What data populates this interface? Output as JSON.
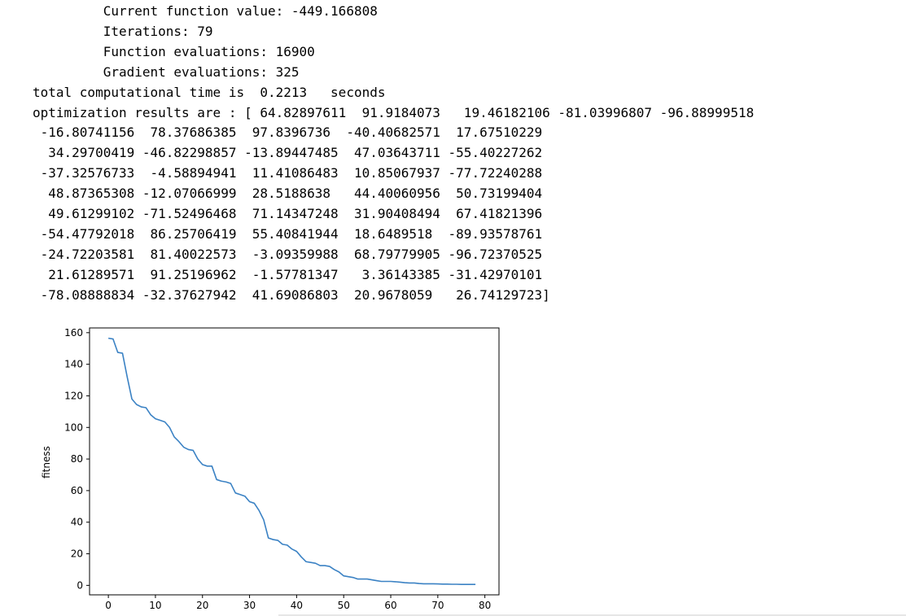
{
  "output": {
    "lines": [
      "         Current function value: -449.166808",
      "         Iterations: 79",
      "         Function evaluations: 16900",
      "         Gradient evaluations: 325",
      "total computational time is  0.2213   seconds",
      "optimization results are : [ 64.82897611  91.9184073   19.46182106 -81.03996807 -96.88999518",
      " -16.80741156  78.37686385  97.8396736  -40.40682571  17.67510229",
      "  34.29700419 -46.82298857 -13.89447485  47.03643711 -55.40227262",
      " -37.32576733  -4.58894941  11.41086483  10.85067937 -77.72240288",
      "  48.87365308 -12.07066999  28.5188638   44.40060956  50.73199404",
      "  49.61299102 -71.52496468  71.14347248  31.90408494  67.41821396",
      " -54.47792018  86.25706419  55.40841944  18.6489518  -89.93578761",
      " -24.72203581  81.40022573  -3.09359988  68.79779905 -96.72370525",
      "  21.61289571  91.25196962  -1.57781347   3.36143385 -31.42970101",
      " -78.08888834 -32.37627942  41.69086803  20.9678059   26.74129723]"
    ]
  },
  "chart_data": {
    "type": "line",
    "title": "",
    "xlabel": "",
    "ylabel": "fitness",
    "xlim": [
      -4,
      83
    ],
    "ylim": [
      -6,
      163
    ],
    "xticks": [
      0,
      10,
      20,
      30,
      40,
      50,
      60,
      70,
      80
    ],
    "yticks": [
      0,
      20,
      40,
      60,
      80,
      100,
      120,
      140,
      160
    ],
    "grid": false,
    "line_color": "#3b82c4",
    "series": [
      {
        "x": [
          0,
          1,
          2,
          3,
          4,
          5,
          6,
          7,
          8,
          9,
          10,
          11,
          12,
          13,
          14,
          15,
          16,
          17,
          18,
          19,
          20,
          21,
          22,
          23,
          24,
          25,
          26,
          27,
          28,
          29,
          30,
          31,
          32,
          33,
          34,
          35,
          36,
          37,
          38,
          39,
          40,
          41,
          42,
          43,
          44,
          45,
          46,
          47,
          48,
          49,
          50,
          51,
          52,
          53,
          54,
          55,
          56,
          57,
          58,
          59,
          60,
          61,
          62,
          63,
          64,
          65,
          66,
          67,
          68,
          69,
          70,
          71,
          72,
          73,
          74,
          75,
          76,
          77,
          78
        ],
        "y": [
          156.5,
          156,
          147.5,
          147,
          132,
          118,
          114.5,
          113,
          112.5,
          108,
          105.5,
          104.5,
          103.5,
          100,
          94,
          91,
          87.5,
          86,
          85.5,
          80,
          76.5,
          75.5,
          75.5,
          67,
          66,
          65.5,
          64.5,
          58.5,
          57.5,
          56.5,
          53,
          52,
          47.5,
          41.5,
          30,
          29,
          28.5,
          26,
          25.5,
          23,
          21.5,
          18,
          15,
          14.5,
          14,
          12.5,
          12.5,
          12,
          10,
          8.5,
          6,
          5.5,
          5,
          4,
          4,
          4,
          3.5,
          3,
          2.5,
          2.5,
          2.5,
          2.3,
          2,
          1.7,
          1.5,
          1.5,
          1.2,
          1,
          1,
          1,
          0.9,
          0.8,
          0.8,
          0.7,
          0.7,
          0.6,
          0.6,
          0.6,
          0.6
        ]
      }
    ]
  }
}
